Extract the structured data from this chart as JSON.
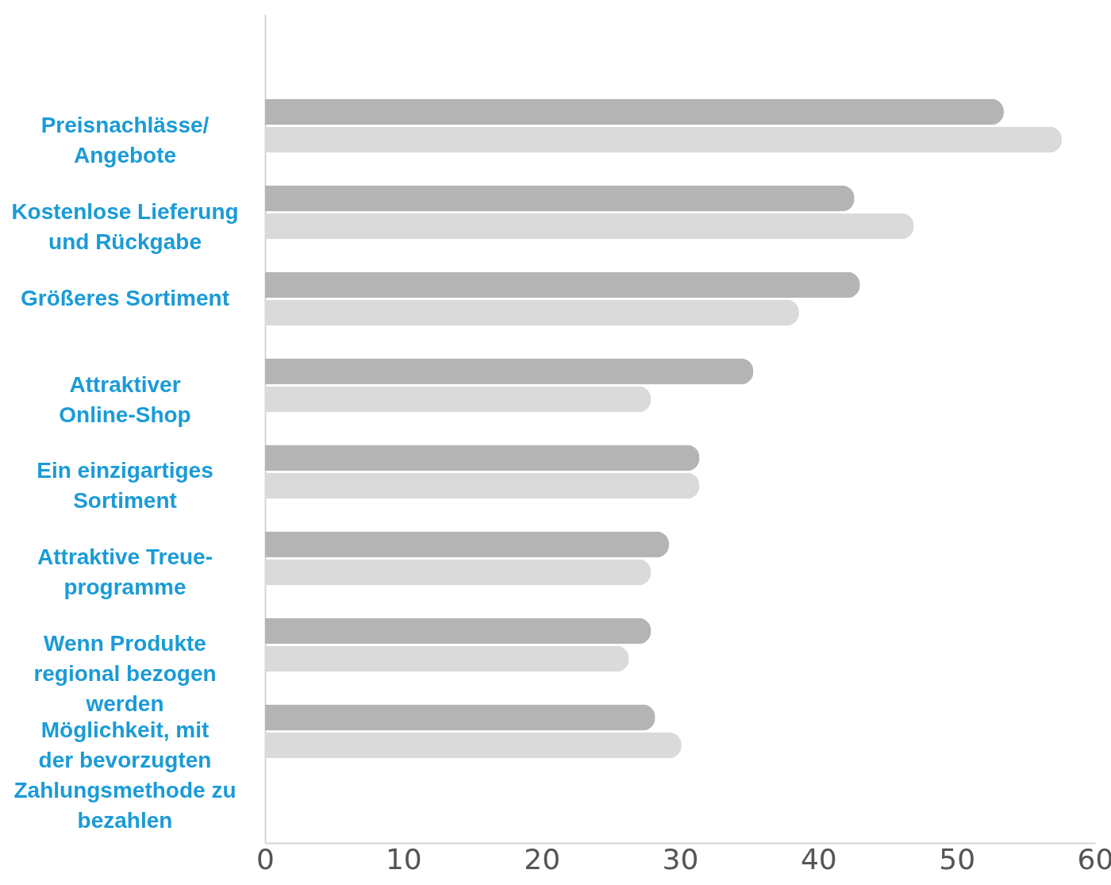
{
  "chart_data": {
    "type": "bar",
    "orientation": "horizontal",
    "categories": [
      "Preisnachlässe/\nAngebote",
      "Kostenlose Lieferung\nund Rückgabe",
      "Größeres Sortiment",
      "Attraktiver\nOnline-Shop",
      "Ein einzigartiges\nSortiment",
      "Attraktive Treue-\nprogramme",
      "Wenn Produkte\nregional bezogen\nwerden",
      "Möglichkeit, mit\nder bevorzugten\nZahlungsmethode zu\nbezahlen"
    ],
    "series": [
      {
        "color": "#b3b4b3",
        "values": [
          53.4,
          42.6,
          43.0,
          35.3,
          31.4,
          29.2,
          27.9,
          28.2
        ]
      },
      {
        "color": "#d9dad9",
        "values": [
          57.6,
          46.9,
          38.6,
          27.9,
          31.4,
          27.9,
          26.3,
          30.1
        ]
      }
    ],
    "xlim": [
      0,
      60
    ],
    "xticks": [
      0,
      10,
      20,
      30,
      40,
      50,
      60
    ],
    "grid": false
  }
}
